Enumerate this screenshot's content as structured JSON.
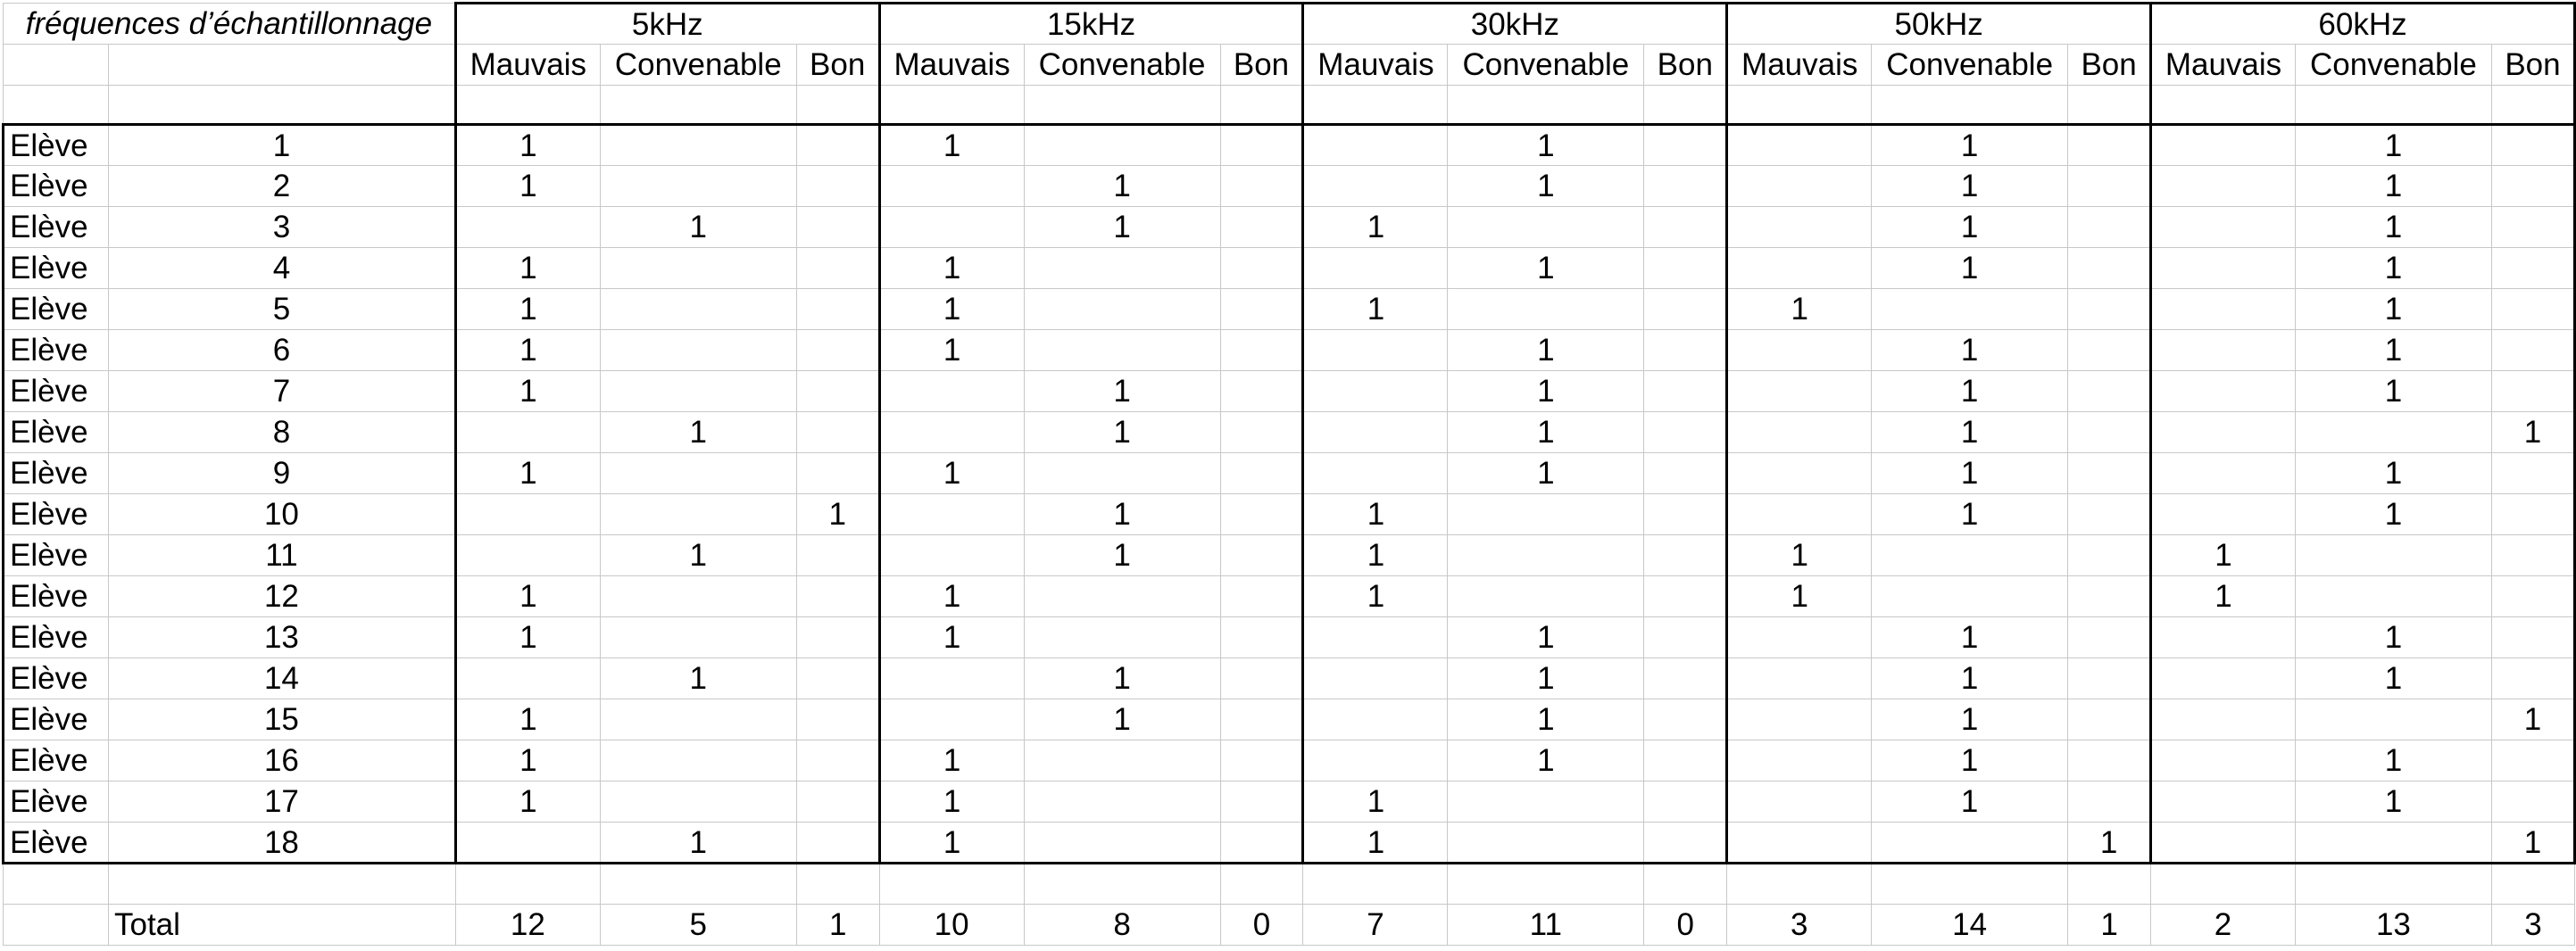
{
  "header": {
    "caption": "fréquences d’échantillonnage",
    "frequencies": [
      "5kHz",
      "15kHz",
      "30kHz",
      "50kHz",
      "60kHz"
    ],
    "categories": [
      "Mauvais",
      "Convenable",
      "Bon"
    ]
  },
  "rows": [
    {
      "label": "Elève",
      "num": "1",
      "cells": [
        "1",
        "",
        "",
        "1",
        "",
        "",
        "",
        "1",
        "",
        "",
        "1",
        "",
        "",
        "1",
        ""
      ]
    },
    {
      "label": "Elève",
      "num": "2",
      "cells": [
        "1",
        "",
        "",
        "",
        "1",
        "",
        "",
        "1",
        "",
        "",
        "1",
        "",
        "",
        "1",
        ""
      ]
    },
    {
      "label": "Elève",
      "num": "3",
      "cells": [
        "",
        "1",
        "",
        "",
        "1",
        "",
        "1",
        "",
        "",
        "",
        "1",
        "",
        "",
        "1",
        ""
      ]
    },
    {
      "label": "Elève",
      "num": "4",
      "cells": [
        "1",
        "",
        "",
        "1",
        "",
        "",
        "",
        "1",
        "",
        "",
        "1",
        "",
        "",
        "1",
        ""
      ]
    },
    {
      "label": "Elève",
      "num": "5",
      "cells": [
        "1",
        "",
        "",
        "1",
        "",
        "",
        "1",
        "",
        "",
        "1",
        "",
        "",
        "",
        "1",
        ""
      ]
    },
    {
      "label": "Elève",
      "num": "6",
      "cells": [
        "1",
        "",
        "",
        "1",
        "",
        "",
        "",
        "1",
        "",
        "",
        "1",
        "",
        "",
        "1",
        ""
      ]
    },
    {
      "label": "Elève",
      "num": "7",
      "cells": [
        "1",
        "",
        "",
        "",
        "1",
        "",
        "",
        "1",
        "",
        "",
        "1",
        "",
        "",
        "1",
        ""
      ]
    },
    {
      "label": "Elève",
      "num": "8",
      "cells": [
        "",
        "1",
        "",
        "",
        "1",
        "",
        "",
        "1",
        "",
        "",
        "1",
        "",
        "",
        "",
        "1"
      ]
    },
    {
      "label": "Elève",
      "num": "9",
      "cells": [
        "1",
        "",
        "",
        "1",
        "",
        "",
        "",
        "1",
        "",
        "",
        "1",
        "",
        "",
        "1",
        ""
      ]
    },
    {
      "label": "Elève",
      "num": "10",
      "cells": [
        "",
        "",
        "1",
        "",
        "1",
        "",
        "1",
        "",
        "",
        "",
        "1",
        "",
        "",
        "1",
        ""
      ]
    },
    {
      "label": "Elève",
      "num": "11",
      "cells": [
        "",
        "1",
        "",
        "",
        "1",
        "",
        "1",
        "",
        "",
        "1",
        "",
        "",
        "1",
        "",
        ""
      ]
    },
    {
      "label": "Elève",
      "num": "12",
      "cells": [
        "1",
        "",
        "",
        "1",
        "",
        "",
        "1",
        "",
        "",
        "1",
        "",
        "",
        "1",
        "",
        ""
      ]
    },
    {
      "label": "Elève",
      "num": "13",
      "cells": [
        "1",
        "",
        "",
        "1",
        "",
        "",
        "",
        "1",
        "",
        "",
        "1",
        "",
        "",
        "1",
        ""
      ]
    },
    {
      "label": "Elève",
      "num": "14",
      "cells": [
        "",
        "1",
        "",
        "",
        "1",
        "",
        "",
        "1",
        "",
        "",
        "1",
        "",
        "",
        "1",
        ""
      ]
    },
    {
      "label": "Elève",
      "num": "15",
      "cells": [
        "1",
        "",
        "",
        "",
        "1",
        "",
        "",
        "1",
        "",
        "",
        "1",
        "",
        "",
        "",
        "1"
      ]
    },
    {
      "label": "Elève",
      "num": "16",
      "cells": [
        "1",
        "",
        "",
        "1",
        "",
        "",
        "",
        "1",
        "",
        "",
        "1",
        "",
        "",
        "1",
        ""
      ]
    },
    {
      "label": "Elève",
      "num": "17",
      "cells": [
        "1",
        "",
        "",
        "1",
        "",
        "",
        "1",
        "",
        "",
        "",
        "1",
        "",
        "",
        "1",
        ""
      ]
    },
    {
      "label": "Elève",
      "num": "18",
      "cells": [
        "",
        "1",
        "",
        "1",
        "",
        "",
        "1",
        "",
        "",
        "",
        "",
        "1",
        "",
        "",
        "1"
      ]
    }
  ],
  "totals": {
    "label": "Total",
    "values": [
      "12",
      "5",
      "1",
      "10",
      "8",
      "0",
      "7",
      "11",
      "0",
      "3",
      "14",
      "1",
      "2",
      "13",
      "3"
    ]
  }
}
